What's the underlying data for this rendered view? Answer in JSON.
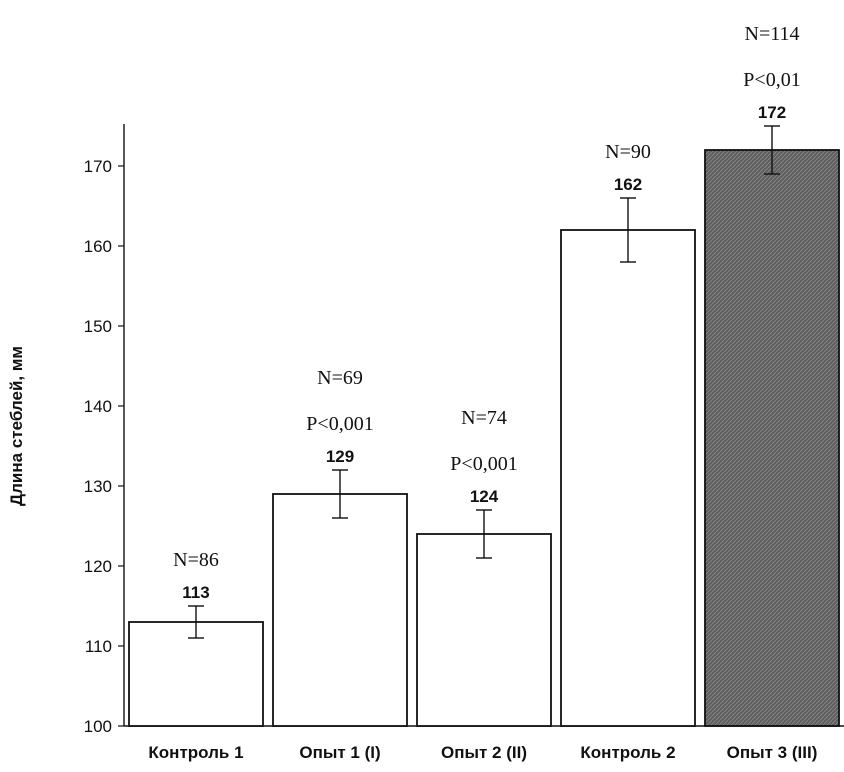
{
  "chart_data": {
    "type": "bar",
    "title": "",
    "xlabel": "",
    "ylabel": "Длина стеблей, мм",
    "ylim": [
      100,
      175
    ],
    "yticks": [
      100,
      110,
      120,
      130,
      140,
      150,
      160,
      170
    ],
    "grid": false,
    "legend": "none",
    "categories": [
      "Контроль 1",
      "Опыт 1 (I)",
      "Опыт 2 (II)",
      "Контроль 2",
      "Опыт 3 (III)"
    ],
    "values": [
      113,
      129,
      124,
      162,
      172
    ],
    "value_labels": [
      "113",
      "129",
      "124",
      "162",
      "172"
    ],
    "error_low": [
      111,
      126,
      121,
      158,
      169
    ],
    "error_high": [
      115,
      132,
      127,
      166,
      175
    ],
    "annotations": [
      [
        "N=86"
      ],
      [
        "N=69",
        "P<0,001"
      ],
      [
        "N=74",
        "P<0,001"
      ],
      [
        "N=90"
      ],
      [
        "N=114",
        "P<0,01"
      ]
    ],
    "bar_fill": [
      "#ffffff",
      "#ffffff",
      "#ffffff",
      "#ffffff",
      "#5a5a5a"
    ]
  }
}
